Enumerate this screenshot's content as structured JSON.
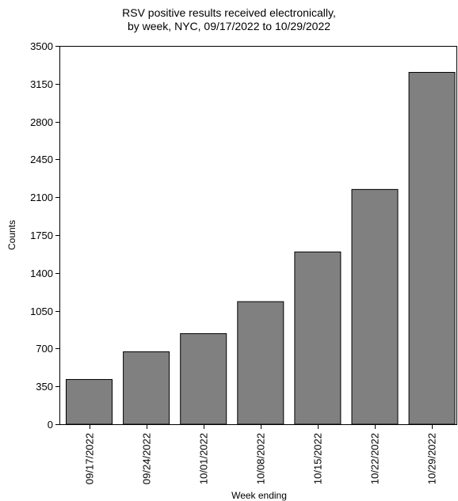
{
  "chart_data": {
    "type": "bar",
    "title_line1": "RSV positive results received electronically,",
    "title_line2": "by week, NYC, 09/17/2022 to 10/29/2022",
    "xlabel": "Week ending",
    "ylabel": "Counts",
    "categories": [
      "09/17/2022",
      "09/24/2022",
      "10/01/2022",
      "10/08/2022",
      "10/15/2022",
      "10/22/2022",
      "10/29/2022"
    ],
    "values": [
      414,
      670,
      838,
      1134,
      1594,
      2172,
      3255
    ],
    "ylim": [
      0,
      3500
    ],
    "yticks": [
      0,
      350,
      700,
      1050,
      1400,
      1750,
      2100,
      2450,
      2800,
      3150,
      3500
    ],
    "grid": false,
    "bar_color": "#808080",
    "bar_edge_color": "#000000"
  }
}
